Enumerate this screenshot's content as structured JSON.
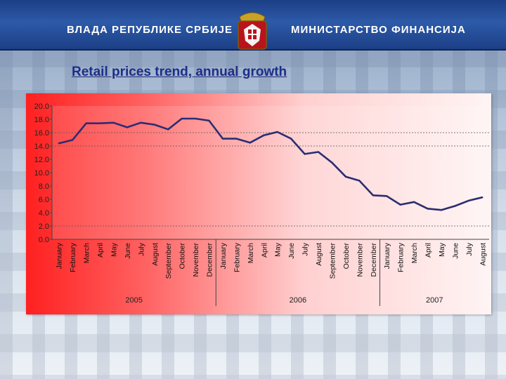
{
  "header": {
    "left_text": "ВЛАДА РЕПУБЛИКЕ СРБИЈЕ",
    "right_text": "МИНИСТАРСТВО ФИНАНСИЈА",
    "emblem": "serbia-coat-of-arms"
  },
  "colors": {
    "line": "#2b2d72",
    "header": "#1c3f86",
    "title": "#1a2f8a"
  },
  "chart_data": {
    "type": "line",
    "title": "Retail prices trend, annual growth",
    "xlabel": "",
    "ylabel": "",
    "ylim": [
      0,
      20
    ],
    "yticks": [
      "0.0",
      "2.0",
      "4.0",
      "6.0",
      "8.0",
      "10.0",
      "12.0",
      "14.0",
      "16.0",
      "18.0",
      "20.0"
    ],
    "grid": "dotted at 2.0, 14.0, 16.0",
    "categories": [
      "January",
      "February",
      "March",
      "April",
      "May",
      "June",
      "July",
      "August",
      "September",
      "October",
      "November",
      "December",
      "January",
      "February",
      "March",
      "April",
      "May",
      "June",
      "July",
      "August",
      "September",
      "October",
      "November",
      "December",
      "January",
      "February",
      "March",
      "April",
      "May",
      "June",
      "July",
      "August"
    ],
    "years": [
      {
        "label": "2005",
        "start": 0,
        "end": 11
      },
      {
        "label": "2006",
        "start": 12,
        "end": 23
      },
      {
        "label": "2007",
        "start": 24,
        "end": 31
      }
    ],
    "series": [
      {
        "name": "Retail prices, annual growth",
        "values": [
          14.4,
          14.9,
          17.4,
          17.4,
          17.5,
          16.8,
          17.5,
          17.2,
          16.5,
          18.1,
          18.1,
          17.8,
          15.1,
          15.1,
          14.5,
          15.6,
          16.1,
          15.1,
          12.8,
          13.1,
          11.5,
          9.4,
          8.8,
          6.6,
          6.5,
          5.2,
          5.6,
          4.6,
          4.4,
          5.0,
          5.8,
          6.3
        ]
      }
    ]
  }
}
